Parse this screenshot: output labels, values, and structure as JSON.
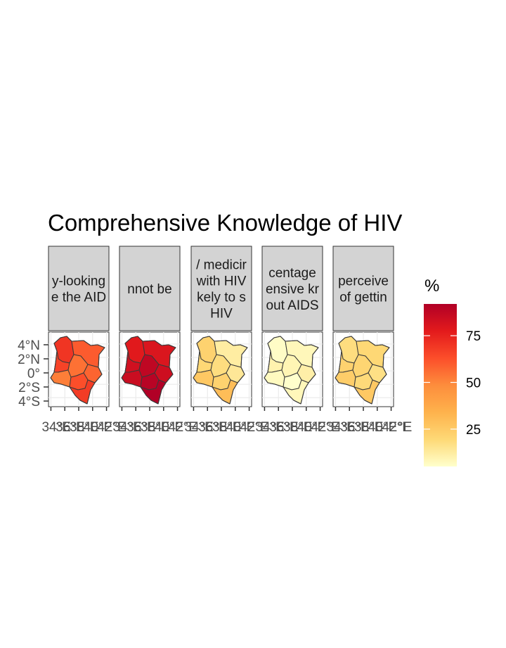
{
  "chart_data": {
    "type": "choropleth-facets",
    "title": "Comprehensive Knowledge of HIV",
    "facets": [
      {
        "strip_lines": [
          "y-looking",
          "e the AID"
        ],
        "region_values": [
          70,
          60,
          66,
          52,
          55,
          58,
          63,
          68
        ]
      },
      {
        "strip_lines": [
          "nnot be"
        ],
        "region_values": [
          78,
          80,
          83,
          85,
          88,
          84,
          90,
          92
        ]
      },
      {
        "strip_lines": [
          "/ medicir",
          "with HIV",
          "kely to s",
          "HIV"
        ],
        "region_values": [
          22,
          12,
          20,
          26,
          18,
          14,
          22,
          30
        ]
      },
      {
        "strip_lines": [
          "centage",
          "ensive kr",
          "out AIDS"
        ],
        "region_values": [
          6,
          8,
          10,
          7,
          9,
          11,
          5,
          8
        ]
      },
      {
        "strip_lines": [
          "perceive",
          "of gettin"
        ],
        "region_values": [
          18,
          20,
          22,
          24,
          21,
          17,
          19,
          26
        ]
      }
    ],
    "y_ticks": [
      "4°N",
      "2°N",
      "0°",
      "2°S",
      "4°S"
    ],
    "x_ticks_overlap": [
      "34°E",
      "36°E",
      "38°E",
      "40°E",
      "42°E"
    ],
    "x_last_tick": "°E",
    "legend": {
      "title": "%",
      "ticks": [
        25,
        50,
        75
      ],
      "range": [
        5,
        92
      ],
      "colors": [
        "#FFFFCC",
        "#FED976",
        "#FEB24C",
        "#FD8D3C",
        "#FC4E2A",
        "#E31A1C",
        "#B10026"
      ]
    },
    "grid": true
  }
}
